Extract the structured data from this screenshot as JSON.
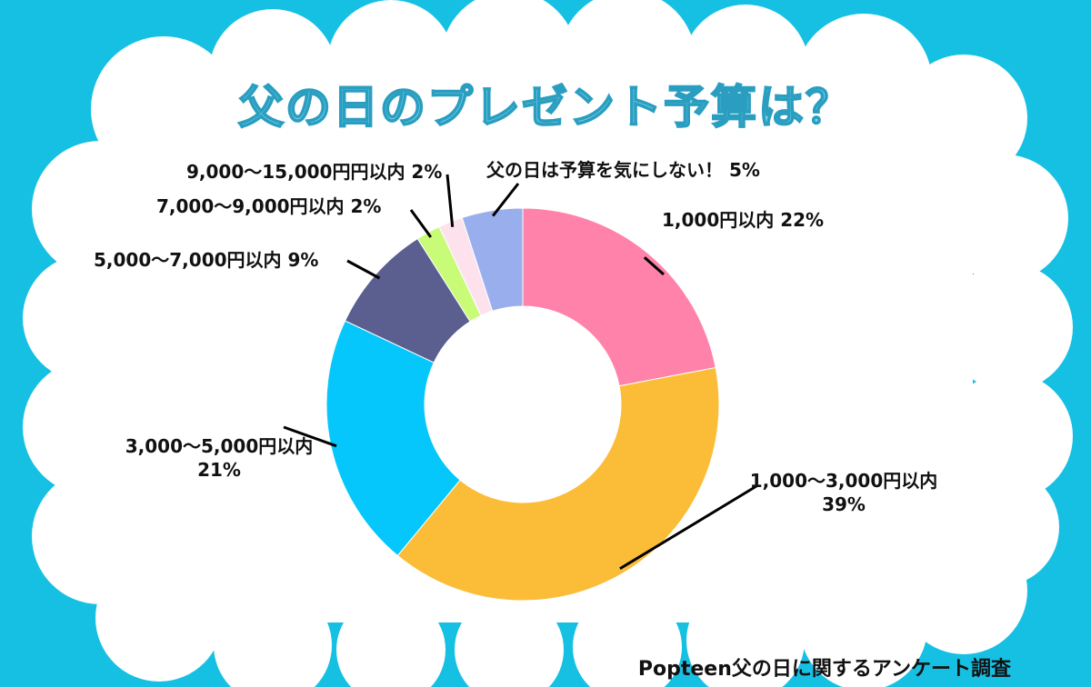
{
  "title": "父の日のプレゼント予算は？",
  "source": "Popteen父の日に関するアンケート調査",
  "colors": {
    "background": "#16c0e3",
    "cloud": "#ffffff"
  },
  "chart_data": {
    "type": "pie",
    "donut": true,
    "title": "父の日のプレゼント予算は？",
    "categories": [
      "1,000円以内",
      "1,000～3,000円以内",
      "3,000～5,000円以内",
      "5,000～7,000円以内",
      "7,000～9,000円以内",
      "9,000～15,000円円以内",
      "父の日は予算を気にしない！"
    ],
    "values": [
      22,
      39,
      21,
      9,
      2,
      2,
      5
    ],
    "unit": "%",
    "slice_colors": [
      "#ff82aa",
      "#fbbd38",
      "#05c7fb",
      "#5b5f8f",
      "#c8fb78",
      "#fde2ee",
      "#99aeec"
    ],
    "labels": [
      {
        "line1": "1,000円以内 22%",
        "line2": ""
      },
      {
        "line1": "1,000～3,000円以内",
        "line2": "39%"
      },
      {
        "line1": "3,000～5,000円以内",
        "line2": "21%"
      },
      {
        "line1": "5,000～7,000円以内 9%",
        "line2": ""
      },
      {
        "line1": "7,000～9,000円以内 2%",
        "line2": ""
      },
      {
        "line1": "9,000～15,000円円以内 2%",
        "line2": ""
      },
      {
        "line1": "父の日は予算を気にしない！ 5%",
        "line2": ""
      }
    ],
    "legend": "none"
  }
}
